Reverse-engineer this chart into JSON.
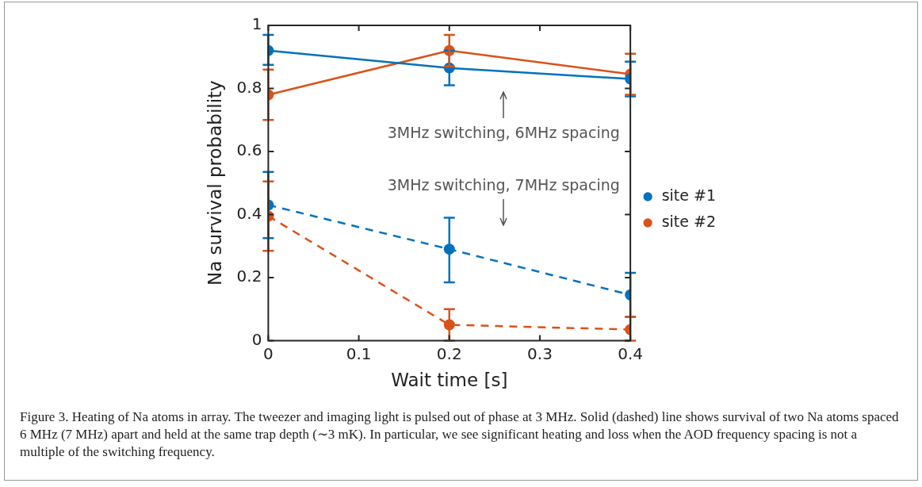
{
  "chart_data": {
    "type": "line",
    "xlabel": "Wait time [s]",
    "ylabel": "Na survival probability",
    "x": [
      0,
      0.2,
      0.4
    ],
    "xlim": [
      0,
      0.4
    ],
    "xticks": [
      0,
      0.1,
      0.2,
      0.3,
      0.4
    ],
    "ylim": [
      0,
      1
    ],
    "yticks": [
      0,
      0.2,
      0.4,
      0.6,
      0.8,
      1
    ],
    "grid": false,
    "legend": "right",
    "marker": "circle",
    "series": [
      {
        "name": "site #1",
        "color": "#0072bd",
        "line_style": "solid",
        "values": [
          0.92,
          0.865,
          0.83
        ],
        "errors": [
          [
            0.875,
            0.97
          ],
          [
            0.81,
            0.92
          ],
          [
            0.775,
            0.885
          ]
        ]
      },
      {
        "name": "site #2",
        "color": "#d95319",
        "line_style": "solid",
        "values": [
          0.78,
          0.92,
          0.845
        ],
        "errors": [
          [
            0.7,
            0.86
          ],
          [
            0.87,
            0.97
          ],
          [
            0.78,
            0.91
          ]
        ]
      },
      {
        "color": "#0072bd",
        "line_style": "dashed",
        "values": [
          0.43,
          0.29,
          0.145
        ],
        "errors": [
          [
            0.325,
            0.535
          ],
          [
            0.185,
            0.39
          ],
          [
            0.075,
            0.215
          ]
        ]
      },
      {
        "color": "#d95319",
        "line_style": "dashed",
        "values": [
          0.395,
          0.05,
          0.035
        ],
        "errors": [
          [
            0.285,
            0.505
          ],
          [
            0,
            0.1
          ],
          [
            0,
            0.075
          ]
        ]
      }
    ],
    "annotations": [
      "3MHz switching, 6MHz spacing",
      "3MHz switching, 7MHz spacing",
      "Figure 3.  Heating of Na atoms in array. The tweezer and imaging light is pulsed out of phase at 3 MHz. Solid (dashed) line shows survival of two Na atoms spaced 6 MHz (7 MHz) apart and held at the same trap depth (∼3 mK). In particular, we see significant heating and loss when the AOD frequency spacing is not a multiple of the switching frequency."
    ]
  }
}
